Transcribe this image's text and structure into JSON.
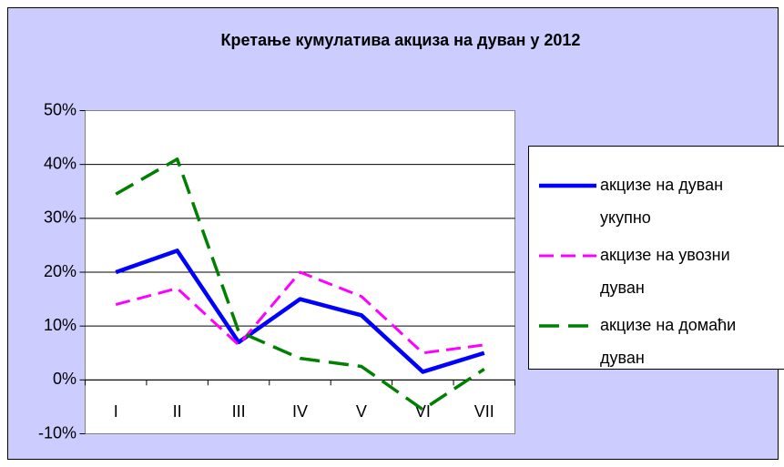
{
  "chart_data": {
    "type": "line",
    "title": "Кретање кумулатива акциза на дуван у 2012",
    "categories": [
      "I",
      "II",
      "III",
      "IV",
      "V",
      "VI",
      "VII"
    ],
    "series": [
      {
        "name": "акцизе на дуван укупно",
        "color": "#0000ff",
        "values": [
          20,
          24,
          7,
          15,
          12,
          1.5,
          5
        ]
      },
      {
        "name": "акцизе на увозни дуван",
        "color": "#ff00ff",
        "values": [
          14,
          17,
          6.5,
          20,
          15.5,
          5,
          6.5
        ]
      },
      {
        "name": "акцизе на домаћи дуван",
        "color": "#008000",
        "values": [
          34.5,
          41,
          9,
          4,
          2.5,
          -5.5,
          2
        ]
      }
    ],
    "ylim": [
      -10,
      50
    ],
    "yticks": [
      {
        "value": -10,
        "label": "-10%"
      },
      {
        "value": 0,
        "label": "0%"
      },
      {
        "value": 10,
        "label": "10%"
      },
      {
        "value": 20,
        "label": "20%"
      },
      {
        "value": 30,
        "label": "30%"
      },
      {
        "value": 40,
        "label": "40%"
      },
      {
        "value": 50,
        "label": "50%"
      }
    ],
    "grid": true,
    "legend": "right"
  }
}
